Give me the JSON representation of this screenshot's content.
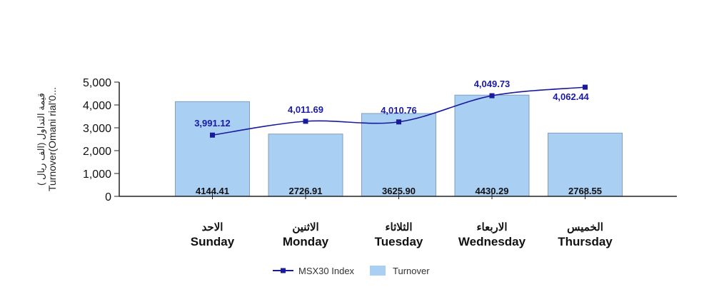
{
  "chart_data": {
    "type": "bar+line",
    "categories_ar": [
      "الاحد",
      "الاثنين",
      "الثلاثاء",
      "الاربعاء",
      "الخميس"
    ],
    "categories": [
      "Sunday",
      "Monday",
      "Tuesday",
      "Wednesday",
      "Thursday"
    ],
    "ylabel_ar": "( قيمة التداول (الف ريال",
    "ylabel": "Turnover(Omani rial'0...",
    "ylim": [
      0,
      5000
    ],
    "yticks": [
      "0",
      "1,000",
      "2,000",
      "3,000",
      "4,000",
      "5,000"
    ],
    "y2lim": [
      3900,
      4070
    ],
    "y2_visible": false,
    "grid": false,
    "legend": "bottom-center",
    "series": [
      {
        "name": "MSX30 Index",
        "type": "line",
        "axis": "secondary",
        "color": "#1a1a9c",
        "values": [
          3991.12,
          4011.69,
          4010.76,
          4049.73,
          4062.44
        ],
        "labels": [
          "3,991.12",
          "4,011.69",
          "4,010.76",
          "4,049.73",
          "4,062.44"
        ]
      },
      {
        "name": "Turnover",
        "type": "bar",
        "axis": "primary",
        "color": "#a9cff2",
        "values": [
          4144.41,
          2726.91,
          3625.9,
          4430.29,
          2768.55
        ],
        "labels": [
          "4144.41",
          "2726.91",
          "3625.90",
          "4430.29",
          "2768.55"
        ]
      }
    ]
  }
}
